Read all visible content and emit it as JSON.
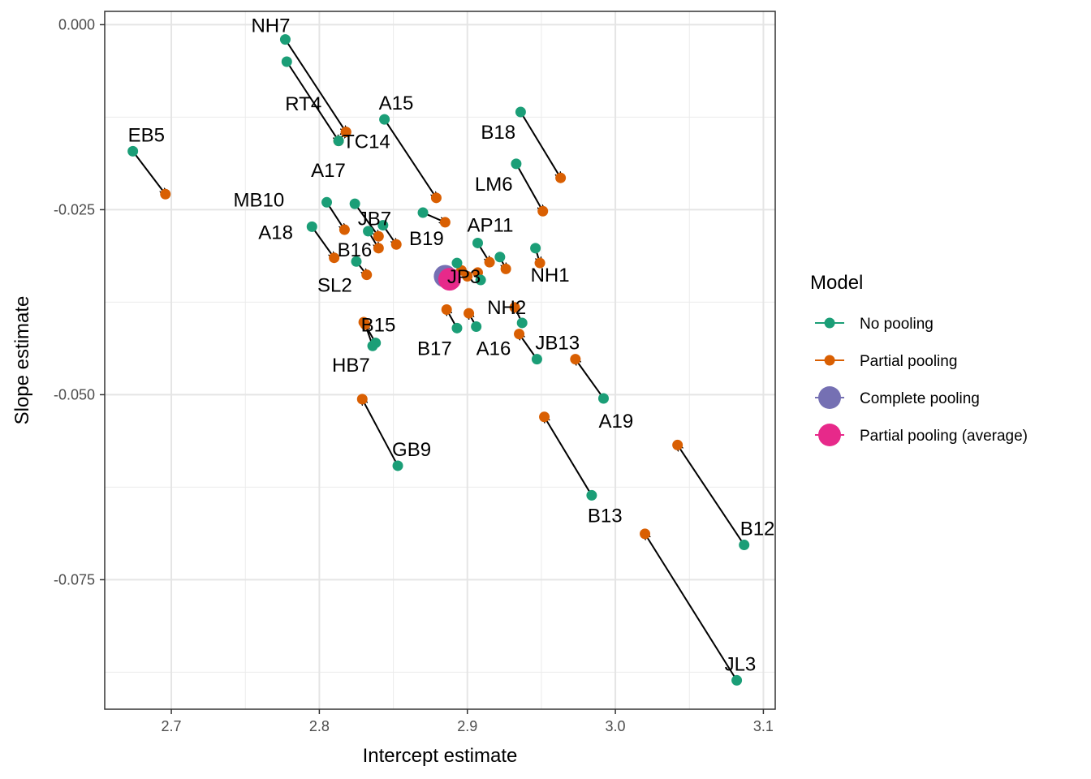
{
  "chart_data": {
    "type": "scatter",
    "xlabel": "Intercept estimate",
    "ylabel": "Slope estimate",
    "xlim": [
      2.655,
      3.108
    ],
    "ylim": [
      -0.0925,
      0.0018
    ],
    "x_ticks": [
      2.7,
      2.8,
      2.9,
      3.0,
      3.1
    ],
    "x_tick_labels": [
      "2.7",
      "2.8",
      "2.9",
      "3.0",
      "3.1"
    ],
    "y_ticks": [
      0.0,
      -0.025,
      -0.05,
      -0.075
    ],
    "y_tick_labels": [
      "0.000",
      "-0.025",
      "-0.050",
      "-0.075"
    ],
    "grid": true,
    "legend": {
      "title": "Model",
      "placement": "right",
      "entries": [
        {
          "name": "No pooling",
          "color": "#1b9e77"
        },
        {
          "name": "Partial pooling",
          "color": "#d95f02"
        },
        {
          "name": "Complete pooling",
          "color": "#7570b3"
        },
        {
          "name": "Partial pooling (average)",
          "color": "#e7298a"
        }
      ]
    },
    "colors": {
      "no_pooling": "#1b9e77",
      "partial_pooling": "#d95f02",
      "complete_pooling": "#7570b3",
      "partial_average": "#e7298a"
    },
    "subjects": [
      {
        "label": "NH7",
        "no_pooling": [
          2.777,
          -0.002
        ],
        "partial_pooling": [
          2.818,
          -0.0145
        ]
      },
      {
        "label": "RT4",
        "no_pooling": [
          2.778,
          -0.005
        ],
        "partial_pooling": [
          2.813,
          -0.0157
        ]
      },
      {
        "label": "TC14",
        "no_pooling": [
          2.813,
          -0.0157
        ],
        "partial_pooling": [
          2.818,
          -0.0145
        ]
      },
      {
        "label": "EB5",
        "no_pooling": [
          2.674,
          -0.0171
        ],
        "partial_pooling": [
          2.696,
          -0.0229
        ]
      },
      {
        "label": "B18",
        "no_pooling": [
          2.936,
          -0.0118
        ],
        "partial_pooling": [
          2.963,
          -0.0207
        ]
      },
      {
        "label": "A15",
        "no_pooling": [
          2.844,
          -0.0128
        ],
        "partial_pooling": [
          2.879,
          -0.0234
        ]
      },
      {
        "label": "LM6",
        "no_pooling": [
          2.933,
          -0.0188
        ],
        "partial_pooling": [
          2.951,
          -0.0252
        ]
      },
      {
        "label": "MB10",
        "no_pooling": [
          2.805,
          -0.024
        ],
        "partial_pooling": [
          2.817,
          -0.0277
        ]
      },
      {
        "label": "A17",
        "no_pooling": [
          2.824,
          -0.0242
        ],
        "partial_pooling": [
          2.84,
          -0.0286
        ]
      },
      {
        "label": "JB7",
        "no_pooling": [
          2.843,
          -0.0271
        ],
        "partial_pooling": [
          2.852,
          -0.0297
        ]
      },
      {
        "label": "B19",
        "no_pooling": [
          2.87,
          -0.0254
        ],
        "partial_pooling": [
          2.885,
          -0.0267
        ]
      },
      {
        "label": "A18",
        "no_pooling": [
          2.795,
          -0.0273
        ],
        "partial_pooling": [
          2.81,
          -0.0315
        ]
      },
      {
        "label": "B16",
        "no_pooling": [
          2.833,
          -0.0279
        ],
        "partial_pooling": [
          2.84,
          -0.0302
        ]
      },
      {
        "label": "SL2",
        "no_pooling": [
          2.825,
          -0.032
        ],
        "partial_pooling": [
          2.832,
          -0.0338
        ]
      },
      {
        "label": "AP11",
        "no_pooling": [
          2.907,
          -0.0295
        ],
        "partial_pooling": [
          2.915,
          -0.0321
        ]
      },
      {
        "label": "NH1",
        "no_pooling": [
          2.946,
          -0.0302
        ],
        "partial_pooling": [
          2.949,
          -0.0322
        ]
      },
      {
        "label": "NH2",
        "no_pooling": [
          2.937,
          -0.0403
        ],
        "partial_pooling": [
          2.932,
          -0.0382
        ]
      },
      {
        "label": "JB13",
        "no_pooling": [
          2.947,
          -0.0452
        ],
        "partial_pooling": [
          2.935,
          -0.0418
        ]
      },
      {
        "label": "A16",
        "no_pooling": [
          2.906,
          -0.0408
        ],
        "partial_pooling": [
          2.901,
          -0.039
        ]
      },
      {
        "label": "B17",
        "no_pooling": [
          2.893,
          -0.041
        ],
        "partial_pooling": [
          2.886,
          -0.0385
        ]
      },
      {
        "label": "B15",
        "no_pooling": [
          2.838,
          -0.043
        ],
        "partial_pooling": [
          2.83,
          -0.0402
        ]
      },
      {
        "label": "HB7",
        "no_pooling": [
          2.836,
          -0.0434
        ],
        "partial_pooling": [
          2.831,
          -0.0405
        ]
      },
      {
        "label": "A19",
        "no_pooling": [
          2.992,
          -0.0505
        ],
        "partial_pooling": [
          2.973,
          -0.0452
        ]
      },
      {
        "label": "B13",
        "no_pooling": [
          2.984,
          -0.0636
        ],
        "partial_pooling": [
          2.952,
          -0.053
        ]
      },
      {
        "label": "GB9",
        "no_pooling": [
          2.853,
          -0.0596
        ],
        "partial_pooling": [
          2.829,
          -0.0506
        ]
      },
      {
        "label": "B12",
        "no_pooling": [
          3.087,
          -0.0703
        ],
        "partial_pooling": [
          3.042,
          -0.0568
        ]
      },
      {
        "label": "JL3",
        "no_pooling": [
          3.082,
          -0.0886
        ],
        "partial_pooling": [
          3.02,
          -0.0688
        ]
      },
      {
        "label": "JP3",
        "no_pooling": [
          2.922,
          -0.0314
        ],
        "partial_pooling": [
          2.926,
          -0.033
        ]
      }
    ],
    "extra_no_pooling": [
      [
        2.893,
        -0.0322
      ],
      [
        2.909,
        -0.0345
      ]
    ],
    "extra_partial_pooling": [
      [
        2.9,
        -0.034
      ],
      [
        2.907,
        -0.0335
      ],
      [
        2.896,
        -0.0332
      ]
    ],
    "complete_pooling": [
      2.885,
      -0.034
    ],
    "partial_pooling_average": [
      2.888,
      -0.0344
    ]
  }
}
